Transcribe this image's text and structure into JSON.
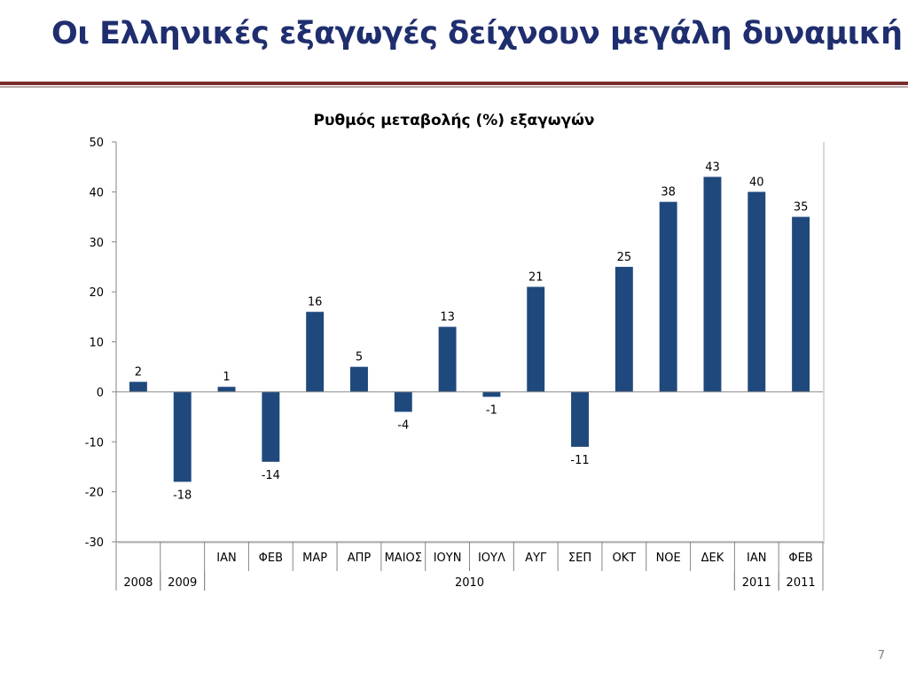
{
  "slide": {
    "title": "Οι Ελληνικές εξαγωγές δείχνουν μεγάλη δυναμική",
    "page_number": "7"
  },
  "colors": {
    "title": "#1f2e6e",
    "bars": "#1f497d",
    "title_rule": "#7b2d2d"
  },
  "chart_data": {
    "type": "bar",
    "title": "Ρυθμός μεταβολής (%) εξαγωγών",
    "xlabel": "",
    "ylabel": "",
    "ylim": [
      -30,
      50
    ],
    "yticks": [
      -30,
      -20,
      -10,
      0,
      10,
      20,
      30,
      40,
      50
    ],
    "grid": false,
    "legend": "none",
    "data_labels": true,
    "categories": [
      "2008",
      "2009",
      "ΙΑΝ 2010",
      "ΦΕΒ 2010",
      "ΜΑΡ 2010",
      "ΑΠΡ 2010",
      "ΜΑΙΟΣ 2010",
      "ΙΟΥΝ 2010",
      "ΙΟΥΛ 2010",
      "ΑΥΓ 2010",
      "ΣΕΠ 2010",
      "ΟΚΤ 2010",
      "ΝΟΕ 2010",
      "ΔΕΚ 2010",
      "ΙΑΝ 2011",
      "ΦΕΒ 2011"
    ],
    "values": [
      2,
      -18,
      1,
      -14,
      16,
      5,
      -4,
      13,
      -1,
      21,
      -11,
      25,
      38,
      43,
      40,
      35
    ],
    "axis_row1": [
      "",
      "",
      "ΙΑΝ",
      "ΦΕΒ",
      "ΜΑΡ",
      "ΑΠΡ",
      "ΜΑΙΟΣ",
      "ΙΟΥΝ",
      "ΙΟΥΛ",
      "ΑΥΓ",
      "ΣΕΠ",
      "ΟΚΤ",
      "ΝΟΕ",
      "ΔΕΚ",
      "ΙΑΝ",
      "ΦΕΒ"
    ],
    "axis_row2_groups": [
      {
        "label": "2008",
        "start": 0,
        "span": 1
      },
      {
        "label": "2009",
        "start": 1,
        "span": 1
      },
      {
        "label": "2010",
        "start": 2,
        "span": 12
      },
      {
        "label": "2011",
        "start": 14,
        "span": 1
      },
      {
        "label": "2011",
        "start": 15,
        "span": 1
      }
    ]
  }
}
